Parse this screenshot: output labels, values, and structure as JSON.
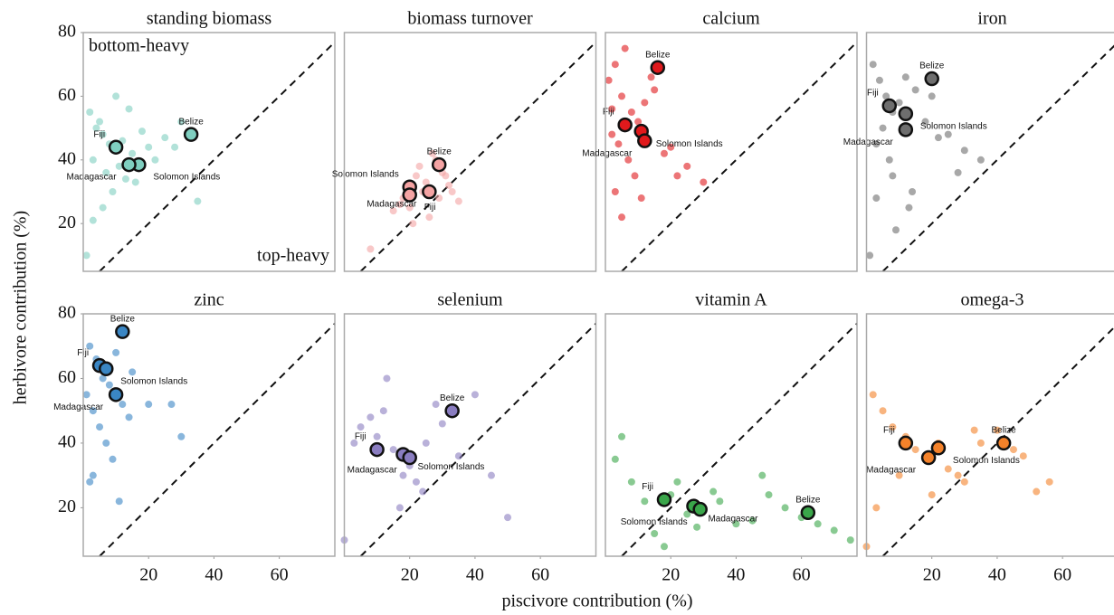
{
  "ylabel": "herbivore contribution (%)",
  "xlabel": "piscivore contribution (%)",
  "chart_data": [
    {
      "type": "scatter",
      "title": "standing biomass",
      "color": "#7fcfc0",
      "xlim": [
        0,
        77
      ],
      "ylim": [
        5,
        80
      ],
      "yticks": [
        20,
        40,
        60,
        80
      ],
      "diagonal": true,
      "annotations": [
        "bottom-heavy",
        "top-heavy"
      ],
      "x": [
        2,
        4,
        6,
        8,
        3,
        5,
        12,
        15,
        20,
        25,
        30,
        7,
        9,
        11,
        18,
        22,
        14,
        3,
        6,
        28,
        35,
        16,
        1,
        10,
        13
      ],
      "values": [
        55,
        50,
        48,
        45,
        40,
        52,
        46,
        42,
        44,
        47,
        52,
        36,
        30,
        38,
        49,
        40,
        56,
        21,
        25,
        44,
        27,
        33,
        10,
        60,
        34
      ],
      "highlights": [
        {
          "label": "Belize",
          "x": 33,
          "y": 48
        },
        {
          "label": "Fiji",
          "x": 10,
          "y": 44
        },
        {
          "label": "Solomon Islands",
          "x": 17,
          "y": 38.5
        },
        {
          "label": "Madagascar",
          "x": 14,
          "y": 38.5
        }
      ]
    },
    {
      "type": "scatter",
      "title": "biomass turnover",
      "color": "#f4a3a3",
      "xlim": [
        0,
        77
      ],
      "ylim": [
        5,
        80
      ],
      "diagonal": true,
      "x": [
        22,
        25,
        28,
        18,
        30,
        24,
        20,
        32,
        27,
        15,
        35,
        23,
        8,
        26,
        19,
        33,
        29,
        21,
        17,
        31
      ],
      "values": [
        35,
        33,
        40,
        28,
        36,
        30,
        25,
        32,
        42,
        24,
        27,
        38,
        12,
        22,
        32,
        30,
        28,
        20,
        26,
        35
      ],
      "highlights": [
        {
          "label": "Belize",
          "x": 29,
          "y": 38.5
        },
        {
          "label": "Solomon Islands",
          "x": 20,
          "y": 31.5
        },
        {
          "label": "Fiji",
          "x": 20,
          "y": 29
        },
        {
          "label": "Madagascar",
          "x": 26,
          "y": 30
        }
      ]
    },
    {
      "type": "scatter",
      "title": "calcium",
      "color": "#e0191c",
      "xlim": [
        0,
        77
      ],
      "ylim": [
        5,
        80
      ],
      "diagonal": true,
      "x": [
        1,
        3,
        5,
        8,
        2,
        4,
        10,
        12,
        15,
        7,
        6,
        20,
        25,
        18,
        3,
        9,
        14,
        22,
        30,
        5,
        11,
        2
      ],
      "values": [
        65,
        70,
        60,
        55,
        48,
        45,
        52,
        58,
        62,
        40,
        75,
        44,
        38,
        42,
        30,
        35,
        66,
        35,
        33,
        22,
        28,
        56
      ],
      "highlights": [
        {
          "label": "Belize",
          "x": 16,
          "y": 69
        },
        {
          "label": "Fiji",
          "x": 6,
          "y": 51
        },
        {
          "label": "Solomon Islands",
          "x": 11,
          "y": 49
        },
        {
          "label": "Madagascar",
          "x": 12,
          "y": 46
        }
      ]
    },
    {
      "type": "scatter",
      "title": "iron",
      "color": "#6e6e6e",
      "xlim": [
        0,
        77
      ],
      "ylim": [
        5,
        80
      ],
      "diagonal": true,
      "x": [
        2,
        4,
        6,
        8,
        10,
        15,
        5,
        3,
        12,
        18,
        20,
        25,
        30,
        35,
        8,
        14,
        22,
        7,
        3,
        1,
        28,
        13,
        9
      ],
      "values": [
        70,
        65,
        60,
        55,
        58,
        62,
        50,
        45,
        66,
        52,
        60,
        48,
        43,
        40,
        35,
        30,
        47,
        40,
        28,
        10,
        36,
        25,
        18
      ],
      "highlights": [
        {
          "label": "Belize",
          "x": 20,
          "y": 65.5
        },
        {
          "label": "Fiji",
          "x": 7,
          "y": 57
        },
        {
          "label": "Solomon Islands",
          "x": 12,
          "y": 54.5
        },
        {
          "label": "Madagascar",
          "x": 12,
          "y": 49.5
        }
      ]
    },
    {
      "type": "scatter",
      "title": "zinc",
      "color": "#3a86c4",
      "xlim": [
        0,
        77
      ],
      "ylim": [
        5,
        80
      ],
      "xticks": [
        20,
        40,
        60
      ],
      "yticks": [
        20,
        40,
        60,
        80
      ],
      "diagonal": true,
      "x": [
        2,
        4,
        6,
        1,
        3,
        8,
        10,
        12,
        15,
        5,
        7,
        20,
        27,
        30,
        9,
        3,
        14,
        2,
        11
      ],
      "values": [
        70,
        66,
        60,
        55,
        50,
        58,
        68,
        52,
        62,
        45,
        40,
        52,
        52,
        42,
        35,
        30,
        48,
        28,
        22
      ],
      "highlights": [
        {
          "label": "Belize",
          "x": 12,
          "y": 74.5
        },
        {
          "label": "Fiji",
          "x": 5,
          "y": 64
        },
        {
          "label": "Solomon Islands",
          "x": 7,
          "y": 63
        },
        {
          "label": "Madagascar",
          "x": 10,
          "y": 55
        }
      ]
    },
    {
      "type": "scatter",
      "title": "selenium",
      "color": "#8a7dc0",
      "xlim": [
        0,
        77
      ],
      "ylim": [
        5,
        80
      ],
      "xticks": [
        20,
        40,
        60
      ],
      "diagonal": true,
      "x": [
        5,
        10,
        15,
        20,
        25,
        30,
        8,
        12,
        18,
        22,
        28,
        35,
        3,
        40,
        45,
        50,
        13,
        17,
        24,
        0
      ],
      "values": [
        45,
        42,
        38,
        33,
        40,
        46,
        48,
        50,
        30,
        28,
        52,
        36,
        40,
        55,
        30,
        17,
        60,
        20,
        25,
        10
      ],
      "highlights": [
        {
          "label": "Belize",
          "x": 33,
          "y": 50
        },
        {
          "label": "Fiji",
          "x": 10,
          "y": 38
        },
        {
          "label": "Solomon Islands",
          "x": 18,
          "y": 36.5
        },
        {
          "label": "Madagascar",
          "x": 20,
          "y": 35.5
        }
      ]
    },
    {
      "type": "scatter",
      "title": "vitamin A",
      "color": "#3aa64a",
      "xlim": [
        0,
        77
      ],
      "ylim": [
        5,
        80
      ],
      "xticks": [
        20,
        40,
        60
      ],
      "diagonal": true,
      "x": [
        3,
        8,
        12,
        20,
        25,
        30,
        35,
        40,
        45,
        50,
        55,
        60,
        65,
        70,
        75,
        15,
        22,
        28,
        33,
        5,
        48,
        18
      ],
      "values": [
        35,
        28,
        22,
        24,
        18,
        20,
        22,
        15,
        16,
        24,
        20,
        17,
        15,
        13,
        10,
        12,
        28,
        14,
        25,
        42,
        30,
        8
      ],
      "highlights": [
        {
          "label": "Belize",
          "x": 62,
          "y": 18.5
        },
        {
          "label": "Fiji",
          "x": 18,
          "y": 22.5
        },
        {
          "label": "Madagascar",
          "x": 27,
          "y": 20.5
        },
        {
          "label": "Solomon Islands",
          "x": 29,
          "y": 19.5
        }
      ]
    },
    {
      "type": "scatter",
      "title": "omega-3",
      "color": "#f4822a",
      "xlim": [
        0,
        77
      ],
      "ylim": [
        5,
        80
      ],
      "xticks": [
        20,
        40,
        60
      ],
      "diagonal": true,
      "x": [
        2,
        5,
        8,
        12,
        15,
        18,
        22,
        25,
        28,
        30,
        35,
        40,
        45,
        48,
        52,
        56,
        10,
        20,
        3,
        33,
        0
      ],
      "values": [
        55,
        50,
        45,
        42,
        38,
        35,
        40,
        32,
        30,
        28,
        40,
        44,
        38,
        36,
        25,
        28,
        30,
        24,
        20,
        44,
        8
      ],
      "highlights": [
        {
          "label": "Belize",
          "x": 42,
          "y": 40
        },
        {
          "label": "Fiji",
          "x": 12,
          "y": 40
        },
        {
          "label": "Solomon Islands",
          "x": 22,
          "y": 38.5
        },
        {
          "label": "Madagascar",
          "x": 19,
          "y": 35.5
        }
      ]
    }
  ]
}
